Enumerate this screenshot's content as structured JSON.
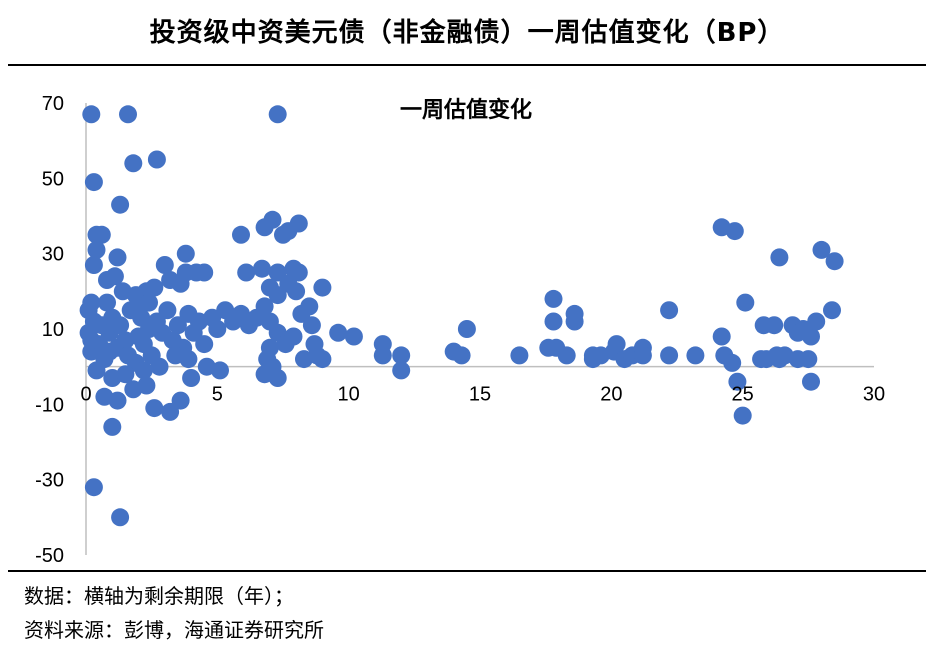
{
  "header": {
    "title": "投资级中资美元债（非金融债）一周估值变化（BP）"
  },
  "footer": {
    "note1": "数据：横轴为剩余期限（年）；",
    "note2": "资料来源：彭博，海通证券研究所"
  },
  "colors": {
    "marker": "#4472C4",
    "axis": "#BFBFBF"
  },
  "chart_data": {
    "type": "scatter",
    "title": "一周估值变化",
    "xlabel": "",
    "ylabel": "",
    "xlim": [
      0,
      30
    ],
    "ylim": [
      -50,
      70
    ],
    "xticks": [
      "0",
      "5",
      "10",
      "15",
      "20",
      "25",
      "30"
    ],
    "yticks": [
      "70",
      "50",
      "30",
      "10",
      "-10",
      "-30",
      "-50"
    ],
    "grid": false,
    "legend": "none",
    "points": [
      [
        0.2,
        67
      ],
      [
        1.6,
        67
      ],
      [
        7.3,
        67
      ],
      [
        1.8,
        54
      ],
      [
        2.7,
        55
      ],
      [
        0.3,
        49
      ],
      [
        1.3,
        43
      ],
      [
        0.4,
        35
      ],
      [
        0.6,
        35
      ],
      [
        0.4,
        31
      ],
      [
        0.3,
        27
      ],
      [
        1.2,
        29
      ],
      [
        0.8,
        23
      ],
      [
        1.1,
        24
      ],
      [
        3.8,
        30
      ],
      [
        3.8,
        25
      ],
      [
        4.2,
        25
      ],
      [
        4.5,
        25
      ],
      [
        3.6,
        22
      ],
      [
        3.0,
        27
      ],
      [
        3.2,
        23
      ],
      [
        2.3,
        20
      ],
      [
        2.6,
        21
      ],
      [
        1.9,
        19
      ],
      [
        5.9,
        35
      ],
      [
        6.8,
        37
      ],
      [
        7.1,
        39
      ],
      [
        7.5,
        35
      ],
      [
        7.7,
        36
      ],
      [
        8.1,
        38
      ],
      [
        6.7,
        26
      ],
      [
        7.3,
        25
      ],
      [
        7.9,
        26
      ],
      [
        8.1,
        25
      ],
      [
        7.7,
        22
      ],
      [
        7.3,
        19
      ],
      [
        8.0,
        20
      ],
      [
        7.0,
        21
      ],
      [
        9.0,
        21
      ],
      [
        6.1,
        25
      ],
      [
        0.2,
        17
      ],
      [
        0.1,
        15
      ],
      [
        0.8,
        17
      ],
      [
        1.4,
        20
      ],
      [
        1.0,
        13
      ],
      [
        0.6,
        11
      ],
      [
        0.9,
        9
      ],
      [
        1.3,
        11
      ],
      [
        1.5,
        7
      ],
      [
        0.2,
        4
      ],
      [
        0.5,
        6
      ],
      [
        0.7,
        2
      ],
      [
        0.9,
        4
      ],
      [
        1.2,
        5
      ],
      [
        1.6,
        3
      ],
      [
        1.9,
        1
      ],
      [
        2.1,
        13
      ],
      [
        2.4,
        10
      ],
      [
        2.2,
        6
      ],
      [
        2.5,
        3
      ],
      [
        2.7,
        12
      ],
      [
        2.9,
        9
      ],
      [
        3.1,
        15
      ],
      [
        3.3,
        7
      ],
      [
        3.5,
        11
      ],
      [
        3.7,
        5
      ],
      [
        3.9,
        14
      ],
      [
        4.1,
        9
      ],
      [
        4.3,
        12
      ],
      [
        4.5,
        6
      ],
      [
        4.8,
        13
      ],
      [
        5.0,
        10
      ],
      [
        5.3,
        15
      ],
      [
        5.6,
        12
      ],
      [
        5.9,
        14
      ],
      [
        6.2,
        11
      ],
      [
        6.5,
        13
      ],
      [
        6.8,
        16
      ],
      [
        7.0,
        12
      ],
      [
        7.3,
        9
      ],
      [
        7.6,
        6
      ],
      [
        7.9,
        8
      ],
      [
        8.2,
        14
      ],
      [
        8.5,
        16
      ],
      [
        8.6,
        11
      ],
      [
        8.7,
        6
      ],
      [
        8.8,
        3
      ],
      [
        9.0,
        2
      ],
      [
        8.3,
        2
      ],
      [
        7.0,
        5
      ],
      [
        6.9,
        2
      ],
      [
        7.1,
        0
      ],
      [
        7.3,
        -3
      ],
      [
        6.8,
        -2
      ],
      [
        1.0,
        -3
      ],
      [
        1.5,
        -2
      ],
      [
        1.8,
        -6
      ],
      [
        2.3,
        -5
      ],
      [
        2.6,
        -11
      ],
      [
        3.2,
        -12
      ],
      [
        3.6,
        -9
      ],
      [
        1.2,
        -9
      ],
      [
        0.7,
        -8
      ],
      [
        0.4,
        -1
      ],
      [
        1.0,
        -16
      ],
      [
        1.3,
        -40
      ],
      [
        0.3,
        -32
      ],
      [
        5.1,
        -1
      ],
      [
        4.6,
        0
      ],
      [
        3.9,
        2
      ],
      [
        0.1,
        9
      ],
      [
        0.3,
        12
      ],
      [
        0.2,
        7
      ],
      [
        1.7,
        15
      ],
      [
        2.0,
        16
      ],
      [
        2.4,
        17
      ],
      [
        2.0,
        8
      ],
      [
        2.2,
        -1
      ],
      [
        2.8,
        0
      ],
      [
        3.4,
        3
      ],
      [
        4.0,
        -3
      ],
      [
        9.6,
        9
      ],
      [
        10.2,
        8
      ],
      [
        11.3,
        6
      ],
      [
        11.3,
        3
      ],
      [
        12.0,
        3
      ],
      [
        12.0,
        -1
      ],
      [
        14.0,
        4
      ],
      [
        14.3,
        3
      ],
      [
        14.5,
        10
      ],
      [
        16.5,
        3
      ],
      [
        17.6,
        5
      ],
      [
        17.9,
        5
      ],
      [
        18.3,
        3
      ],
      [
        17.8,
        18
      ],
      [
        17.8,
        12
      ],
      [
        18.6,
        14
      ],
      [
        18.6,
        12
      ],
      [
        19.3,
        3
      ],
      [
        19.3,
        2
      ],
      [
        19.6,
        3
      ],
      [
        20.1,
        4
      ],
      [
        20.2,
        6
      ],
      [
        20.5,
        2
      ],
      [
        20.8,
        3
      ],
      [
        21.2,
        5
      ],
      [
        21.2,
        3
      ],
      [
        22.2,
        3
      ],
      [
        22.2,
        15
      ],
      [
        23.2,
        3
      ],
      [
        24.2,
        37
      ],
      [
        24.7,
        36
      ],
      [
        24.2,
        8
      ],
      [
        24.3,
        3
      ],
      [
        24.6,
        1
      ],
      [
        24.8,
        -4
      ],
      [
        25.0,
        -13
      ],
      [
        25.1,
        17
      ],
      [
        25.7,
        2
      ],
      [
        25.8,
        11
      ],
      [
        25.9,
        2
      ],
      [
        26.2,
        11
      ],
      [
        26.3,
        3
      ],
      [
        26.4,
        2
      ],
      [
        26.4,
        29
      ],
      [
        26.6,
        3
      ],
      [
        26.9,
        11
      ],
      [
        27.1,
        2
      ],
      [
        27.1,
        9
      ],
      [
        27.3,
        10
      ],
      [
        27.5,
        2
      ],
      [
        27.6,
        -4
      ],
      [
        27.6,
        8
      ],
      [
        27.8,
        12
      ],
      [
        28.0,
        31
      ],
      [
        28.4,
        15
      ],
      [
        28.5,
        28
      ]
    ]
  }
}
